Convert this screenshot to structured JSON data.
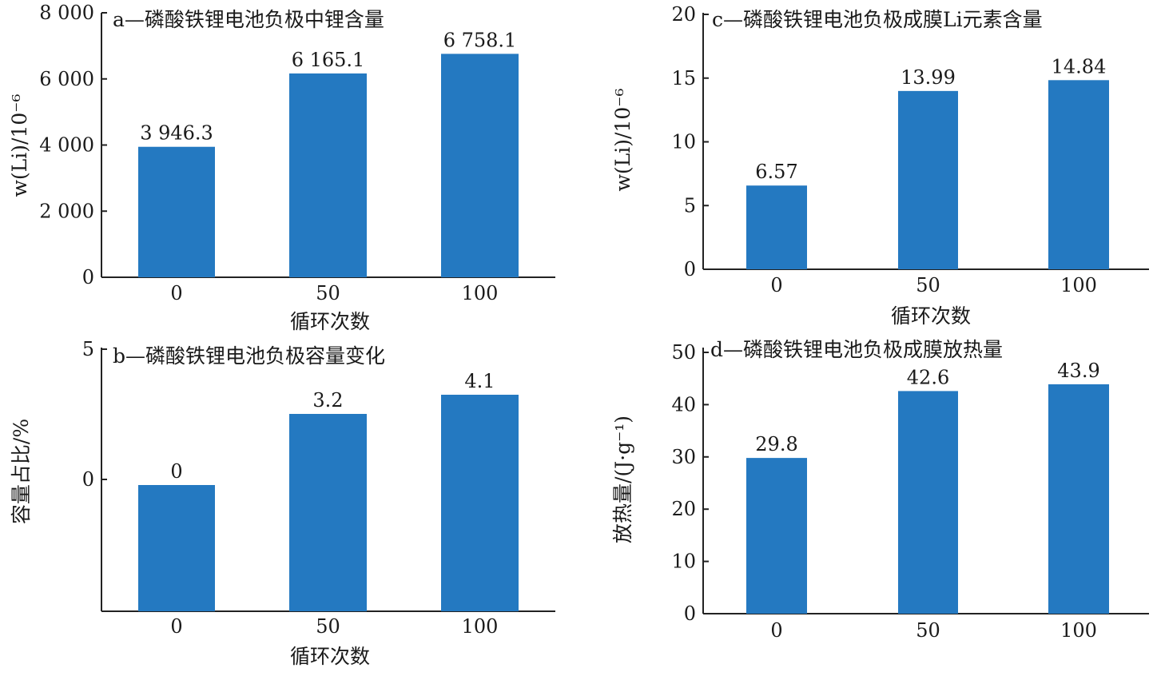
{
  "figure": {
    "background": "#ffffff",
    "bar_color": "#2479c1"
  },
  "chart_data": [
    {
      "id": "a",
      "type": "bar",
      "title": "a—磷酸铁锂电池负极中锂含量",
      "xlabel": "循环次数",
      "ylabel": "w(Li)/10⁻⁶",
      "categories": [
        "0",
        "50",
        "100"
      ],
      "values": [
        3946.3,
        6165.1,
        6758.1
      ],
      "value_labels": [
        "3 946.3",
        "6 165.1",
        "6 758.1"
      ],
      "ylim": [
        0,
        8000
      ],
      "yticks": [
        0,
        2000,
        4000,
        6000,
        8000
      ],
      "ytick_labels": [
        "0",
        "2 000",
        "4 000",
        "6 000",
        "8 000"
      ],
      "grid": false,
      "legend": "none"
    },
    {
      "id": "b",
      "type": "bar",
      "title": "b—磷酸铁锂电池负极容量变化",
      "xlabel": "循环次数",
      "ylabel": "容量占比/%",
      "categories": [
        "0",
        "50",
        "100"
      ],
      "values": [
        0,
        3.2,
        4.1
      ],
      "value_labels": [
        "0",
        "3.2",
        "4.1"
      ],
      "yticks": [
        0,
        5
      ],
      "ytick_labels": [
        "0",
        "5"
      ],
      "grid": false,
      "legend": "none"
    },
    {
      "id": "c",
      "type": "bar",
      "title": "c—磷酸铁锂电池负极成膜Li元素含量",
      "xlabel": "循环次数",
      "ylabel": "w(Li)/10⁻⁶",
      "categories": [
        "0",
        "50",
        "100"
      ],
      "values": [
        6.57,
        13.99,
        14.84
      ],
      "value_labels": [
        "6.57",
        "13.99",
        "14.84"
      ],
      "ylim": [
        0,
        20
      ],
      "yticks": [
        0,
        5,
        10,
        15,
        20
      ],
      "ytick_labels": [
        "0",
        "5",
        "10",
        "15",
        "20"
      ],
      "grid": false,
      "legend": "none"
    },
    {
      "id": "d",
      "type": "bar",
      "title": "d—磷酸铁锂电池负极成膜放热量",
      "xlabel": "",
      "ylabel": "放热量/(J·g⁻¹)",
      "categories": [
        "0",
        "50",
        "100"
      ],
      "values": [
        29.8,
        42.6,
        43.9
      ],
      "value_labels": [
        "29.8",
        "42.6",
        "43.9"
      ],
      "ylim": [
        0,
        50
      ],
      "yticks": [
        0,
        10,
        20,
        30,
        40,
        50
      ],
      "ytick_labels": [
        "0",
        "10",
        "20",
        "30",
        "40",
        "50"
      ],
      "grid": false,
      "legend": "none"
    }
  ]
}
